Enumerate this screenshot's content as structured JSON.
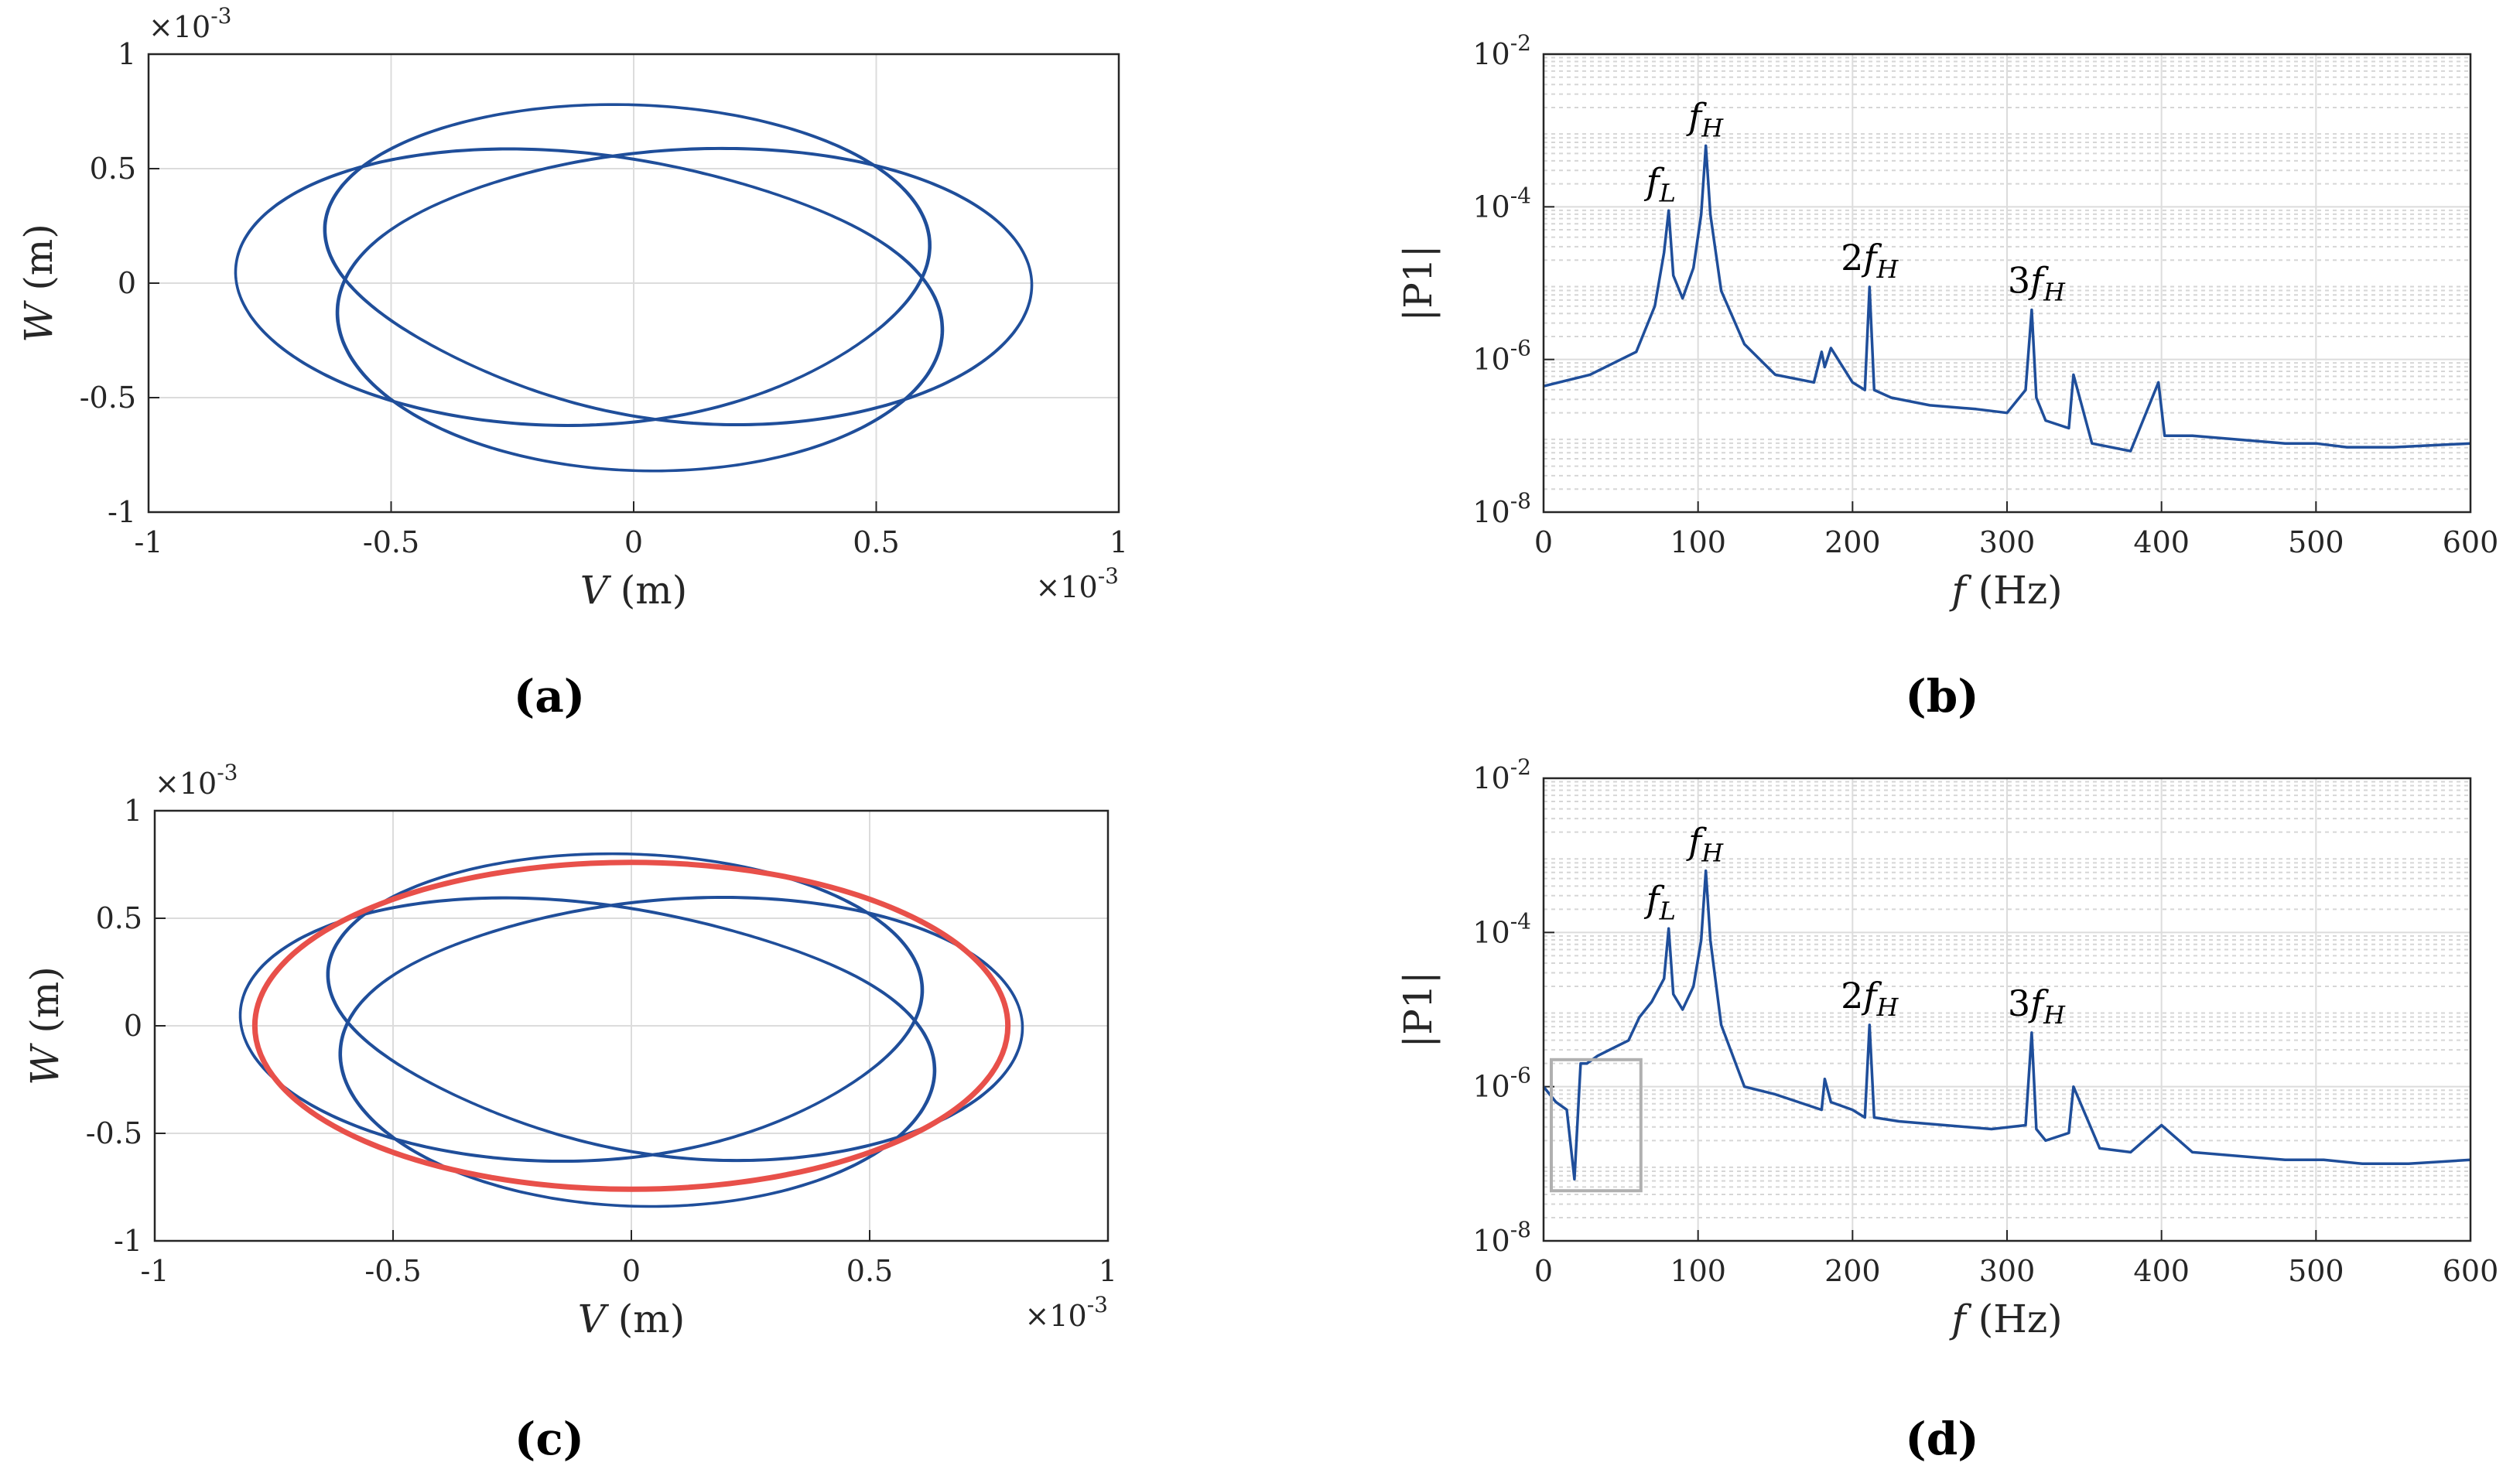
{
  "chart_data": [
    {
      "id": "a",
      "type": "line",
      "panel_label": "(a)",
      "title": "",
      "xlabel": {
        "sym": "V",
        "unit": " (m)"
      },
      "ylabel": {
        "sym": "W",
        "unit": " (m)"
      },
      "xlim": [
        -1,
        1
      ],
      "ylim": [
        -1,
        1
      ],
      "x_ticks": [
        "-1",
        "-0.5",
        "0",
        "0.5",
        "1"
      ],
      "y_ticks": [
        "-1",
        "-0.5",
        "0",
        "0.5",
        "1"
      ],
      "x_multiplier": "×10-3",
      "y_multiplier": "×10-3",
      "grid": true,
      "series": [
        {
          "name": "orbit",
          "color": "#1f4e9a",
          "kind": "orbit",
          "outer_radius_x": 0.82,
          "outer_radius_y": 0.8,
          "inner_radius_x": 0.52,
          "inner_radius_y": 0.5,
          "phase_ratio": 1.333,
          "turns": 9
        }
      ]
    },
    {
      "id": "b",
      "type": "line",
      "panel_label": "(b)",
      "title": "",
      "xlabel": {
        "sym": "f",
        "unit": " (Hz)"
      },
      "ylabel": {
        "sym": "",
        "unit": "|P1|"
      },
      "xlim": [
        0,
        600
      ],
      "ylim_log10": [
        -8,
        -2
      ],
      "x_ticks": [
        "0",
        "100",
        "200",
        "300",
        "400",
        "500",
        "600"
      ],
      "y_ticks": [
        "10-8",
        "10-6",
        "10-4",
        "10-2"
      ],
      "grid": true,
      "series": [
        {
          "name": "spectrum",
          "color": "#1f4e9a",
          "f": [
            0,
            30,
            60,
            72,
            78,
            81,
            84,
            90,
            97,
            102,
            105,
            108,
            115,
            130,
            150,
            175,
            180,
            182,
            186,
            200,
            208,
            211,
            214,
            225,
            250,
            280,
            300,
            312,
            316,
            319,
            325,
            340,
            343,
            355,
            380,
            398,
            402,
            420,
            450,
            480,
            500,
            520,
            550,
            600
          ],
          "log10P": [
            -6.35,
            -6.2,
            -5.9,
            -5.3,
            -4.6,
            -4.05,
            -4.9,
            -5.2,
            -4.8,
            -4.1,
            -3.2,
            -4.1,
            -5.1,
            -5.8,
            -6.2,
            -6.3,
            -5.9,
            -6.1,
            -5.85,
            -6.3,
            -6.4,
            -5.05,
            -6.4,
            -6.5,
            -6.6,
            -6.65,
            -6.7,
            -6.4,
            -5.35,
            -6.5,
            -6.8,
            -6.9,
            -6.2,
            -7.1,
            -7.2,
            -6.3,
            -7.0,
            -7.0,
            -7.05,
            -7.1,
            -7.1,
            -7.15,
            -7.15,
            -7.1
          ]
        }
      ],
      "annotations": [
        {
          "label": "f",
          "sub": "L",
          "f": 81,
          "log10P": -4.05
        },
        {
          "label": "f",
          "sub": "H",
          "f": 105,
          "log10P": -3.2
        },
        {
          "label": "2f",
          "sub": "H",
          "f": 211,
          "log10P": -5.05
        },
        {
          "label": "3f",
          "sub": "H",
          "f": 319,
          "log10P": -5.35
        }
      ]
    },
    {
      "id": "c",
      "type": "line",
      "panel_label": "(c)",
      "title": "",
      "xlabel": {
        "sym": "V",
        "unit": " (m)"
      },
      "ylabel": {
        "sym": "W",
        "unit": " (m)"
      },
      "xlim": [
        -1,
        1
      ],
      "ylim": [
        -1,
        1
      ],
      "x_ticks": [
        "-1",
        "-0.5",
        "0",
        "0.5",
        "1"
      ],
      "y_ticks": [
        "-1",
        "-0.5",
        "0",
        "0.5",
        "1"
      ],
      "x_multiplier": "×10-3",
      "y_multiplier": "×10-3",
      "grid": true,
      "series": [
        {
          "name": "orbit",
          "color": "#1f4e9a",
          "kind": "orbit",
          "outer_radius_x": 0.82,
          "outer_radius_y": 0.82,
          "inner_radius_x": 0.52,
          "inner_radius_y": 0.5,
          "phase_ratio": 1.333,
          "turns": 9
        },
        {
          "name": "reference ellipse",
          "color": "#e8504a",
          "kind": "ellipse",
          "radius_x": 0.79,
          "radius_y": 0.76
        }
      ]
    },
    {
      "id": "d",
      "type": "line",
      "panel_label": "(d)",
      "title": "",
      "xlabel": {
        "sym": "f",
        "unit": " (Hz)"
      },
      "ylabel": {
        "sym": "",
        "unit": "|P1|"
      },
      "xlim": [
        0,
        600
      ],
      "ylim_log10": [
        -8,
        -2
      ],
      "x_ticks": [
        "0",
        "100",
        "200",
        "300",
        "400",
        "500",
        "600"
      ],
      "y_ticks": [
        "10-8",
        "10-6",
        "10-4",
        "10-2"
      ],
      "grid": true,
      "series": [
        {
          "name": "spectrum",
          "color": "#1f4e9a",
          "f": [
            0,
            8,
            15,
            20,
            24,
            28,
            35,
            45,
            55,
            62,
            70,
            78,
            81,
            84,
            90,
            97,
            102,
            105,
            108,
            115,
            130,
            150,
            180,
            182,
            186,
            200,
            208,
            211,
            214,
            230,
            260,
            290,
            312,
            316,
            319,
            325,
            340,
            343,
            360,
            380,
            400,
            420,
            450,
            480,
            505,
            530,
            560,
            600
          ],
          "log10P": [
            -6.0,
            -6.2,
            -6.3,
            -7.2,
            -5.7,
            -5.7,
            -5.6,
            -5.5,
            -5.4,
            -5.1,
            -4.9,
            -4.6,
            -3.95,
            -4.8,
            -5.0,
            -4.7,
            -4.1,
            -3.2,
            -4.1,
            -5.2,
            -6.0,
            -6.1,
            -6.3,
            -5.9,
            -6.2,
            -6.3,
            -6.4,
            -5.2,
            -6.4,
            -6.45,
            -6.5,
            -6.55,
            -6.5,
            -5.3,
            -6.55,
            -6.7,
            -6.6,
            -6.0,
            -6.8,
            -6.85,
            -6.5,
            -6.85,
            -6.9,
            -6.95,
            -6.95,
            -7.0,
            -7.0,
            -6.95
          ]
        }
      ],
      "annotations": [
        {
          "label": "f",
          "sub": "L",
          "f": 81,
          "log10P": -3.95
        },
        {
          "label": "f",
          "sub": "H",
          "f": 105,
          "log10P": -3.2
        },
        {
          "label": "2f",
          "sub": "H",
          "f": 211,
          "log10P": -5.2
        },
        {
          "label": "3f",
          "sub": "H",
          "f": 319,
          "log10P": -5.3
        }
      ],
      "highlight_box": {
        "f": [
          5,
          63
        ],
        "log10P": [
          -7.35,
          -5.65
        ]
      }
    }
  ]
}
